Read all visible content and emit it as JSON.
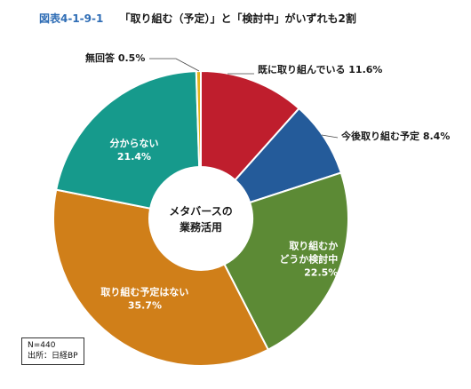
{
  "figure": {
    "number": "図表4-1-9-1",
    "title": "「取り組む（予定）」と「検討中」がいずれも2割"
  },
  "chart_data": {
    "type": "pie",
    "variant": "donut",
    "center_label": [
      "メタバースの",
      "業務活用"
    ],
    "start": "12 o'clock",
    "direction": "clockwise",
    "slices": [
      {
        "label": "既に取り組んでいる",
        "value": 11.6,
        "value_text": "11.6%",
        "color": "#bf1e2d",
        "label_lines": [
          "既に取り組んでいる 11.6%"
        ],
        "label_position": "outside",
        "text_color": "#1a1a1a"
      },
      {
        "label": "今後取り組む予定",
        "value": 8.4,
        "value_text": "8.4%",
        "color": "#245b9a",
        "label_lines": [
          "今後取り組む予定 8.4%"
        ],
        "label_position": "outside",
        "text_color": "#1a1a1a"
      },
      {
        "label": "取り組むかどうか検討中",
        "value": 22.5,
        "value_text": "22.5%",
        "color": "#5c8a35",
        "label_lines": [
          "取り組むか",
          "どうか検討中",
          "22.5%"
        ],
        "label_position": "inside",
        "text_color": "#ffffff"
      },
      {
        "label": "取り組む予定はない",
        "value": 35.7,
        "value_text": "35.7%",
        "color": "#d07f19",
        "label_lines": [
          "取り組む予定はない",
          "35.7%"
        ],
        "label_position": "inside",
        "text_color": "#ffffff"
      },
      {
        "label": "分からない",
        "value": 21.4,
        "value_text": "21.4%",
        "color": "#169a8c",
        "label_lines": [
          "分からない",
          "21.4%"
        ],
        "label_position": "inside",
        "text_color": "#ffffff"
      },
      {
        "label": "無回答",
        "value": 0.5,
        "value_text": "0.5%",
        "color": "#e3b41d",
        "label_lines": [
          "無回答 0.5%"
        ],
        "label_position": "outside",
        "text_color": "#1a1a1a"
      }
    ]
  },
  "notes": {
    "sample_size": "N=440",
    "source": "出所：日経BP"
  }
}
